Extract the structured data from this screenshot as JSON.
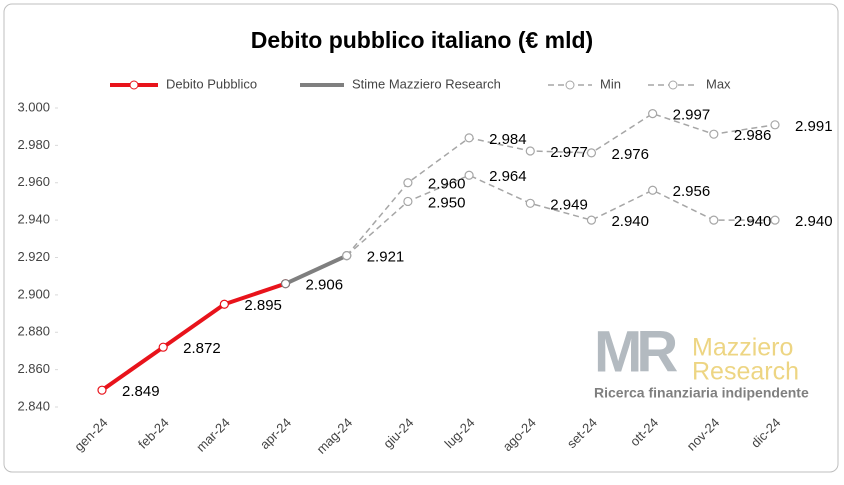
{
  "chart_data": {
    "type": "line",
    "title": "Debito pubblico italiano (€ mld)",
    "categories": [
      "gen-24",
      "feb-24",
      "mar-24",
      "apr-24",
      "mag-24",
      "giu-24",
      "lug-24",
      "ago-24",
      "set-24",
      "ott-24",
      "nov-24",
      "dic-24"
    ],
    "series": [
      {
        "name": "Debito Pubblico",
        "color": "#e8131b",
        "dash": false,
        "values": [
          2849,
          2872,
          2895,
          2906,
          null,
          null,
          null,
          null,
          null,
          null,
          null,
          null
        ],
        "value_labels": [
          "2.849",
          "2.872",
          "2.895",
          "2.906",
          null,
          null,
          null,
          null,
          null,
          null,
          null,
          null
        ]
      },
      {
        "name": "Stime Mazziero Research",
        "color": "#7f7f7f",
        "dash": false,
        "values": [
          null,
          null,
          null,
          2906,
          2921,
          null,
          null,
          null,
          null,
          null,
          null,
          null
        ],
        "value_labels": [
          null,
          null,
          null,
          null,
          "2.921",
          null,
          null,
          null,
          null,
          null,
          null,
          null
        ]
      },
      {
        "name": "Min",
        "color": "#a6a6a6",
        "dash": true,
        "values": [
          null,
          null,
          null,
          null,
          2921,
          2950,
          2964,
          2949,
          2940,
          2956,
          2940,
          2940
        ],
        "value_labels": [
          null,
          null,
          null,
          null,
          null,
          "2.950",
          "2.964",
          "2.949",
          "2.940",
          "2.956",
          "2.940",
          "2.940"
        ]
      },
      {
        "name": "Max",
        "color": "#a6a6a6",
        "dash": true,
        "values": [
          null,
          null,
          null,
          null,
          2921,
          2960,
          2984,
          2977,
          2976,
          2997,
          2986,
          2991
        ],
        "value_labels": [
          null,
          null,
          null,
          null,
          null,
          "2.960",
          "2.984",
          "2.977",
          "2.976",
          "2.997",
          "2.986",
          "2.991"
        ]
      }
    ],
    "ylim": [
      2840,
      3000
    ],
    "yticks": [
      {
        "value": 2840,
        "label": "2.840"
      },
      {
        "value": 2860,
        "label": "2.860"
      },
      {
        "value": 2880,
        "label": "2.880"
      },
      {
        "value": 2900,
        "label": "2.900"
      },
      {
        "value": 2920,
        "label": "2.920"
      },
      {
        "value": 2940,
        "label": "2.940"
      },
      {
        "value": 2960,
        "label": "2.960"
      },
      {
        "value": 2980,
        "label": "2.980"
      },
      {
        "value": 3000,
        "label": "3.000"
      }
    ],
    "legend": "top",
    "watermark": {
      "logo": "MR",
      "name_1": "Mazziero",
      "name_2": "Research",
      "tagline": "Ricerca finanziaria indipendente"
    }
  }
}
